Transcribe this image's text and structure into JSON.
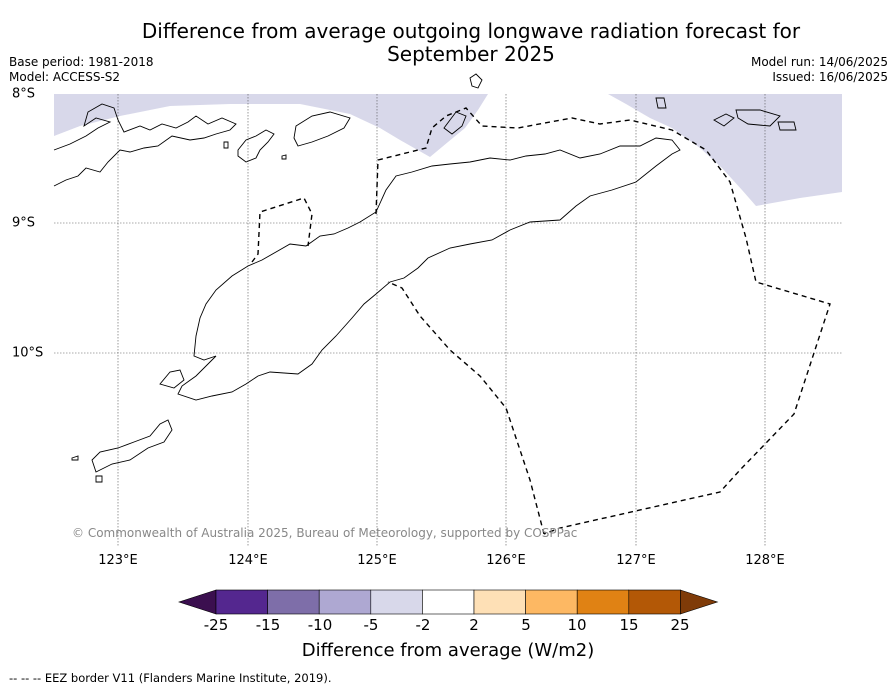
{
  "title": "Difference from average outgoing longwave radiation forecast for September 2025",
  "meta_left": {
    "base_period": "Base period: 1981-2018",
    "model": "Model: ACCESS-S2"
  },
  "meta_right": {
    "model_run": "Model run: 14/06/2025",
    "issued": "Issued: 16/06/2025"
  },
  "copyright": "© Commonwealth of Australia 2025, Bureau of Meteorology, supported by COSPPac",
  "longitude_labels": [
    "123°E",
    "124°E",
    "125°E",
    "126°E",
    "127°E",
    "128°E"
  ],
  "latitude_labels": [
    "8°S",
    "9°S",
    "10°S"
  ],
  "legend": {
    "ticks": [
      "-25",
      "-15",
      "-10",
      "-5",
      "-2",
      "2",
      "5",
      "10",
      "15",
      "25"
    ],
    "colors": [
      "#3b0f4f",
      "#54278f",
      "#7e6ea9",
      "#aea8d2",
      "#d8d8ea",
      "#ffffff",
      "#fee0b6",
      "#fdb863",
      "#e08214",
      "#b35806",
      "#7f3b08"
    ],
    "label": "Difference from average (W/m2)"
  },
  "shading": {
    "northwest_band_color": "#d8d8ea",
    "northeast_band_color": "#d8d8ea"
  },
  "footnote": "-- -- -- EEZ border V11 (Flanders Marine Institute, 2019)."
}
